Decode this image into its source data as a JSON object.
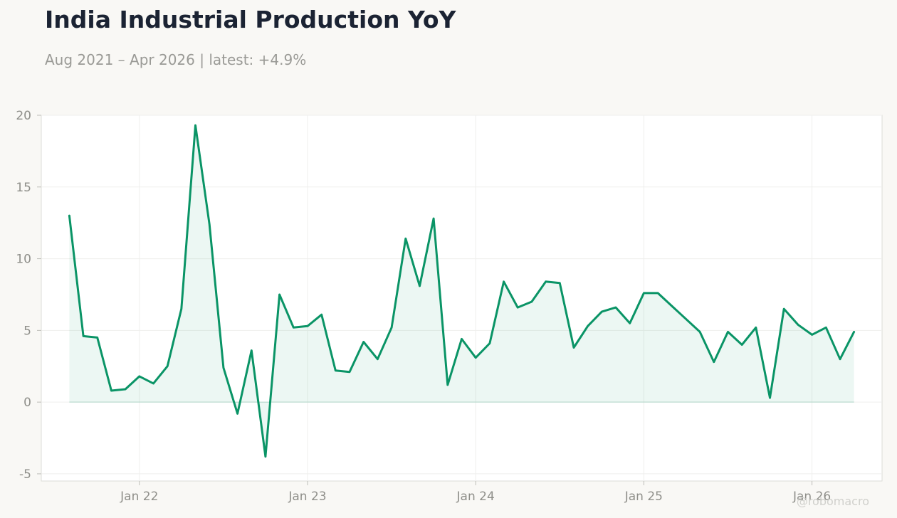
{
  "header": {
    "title": "India Industrial Production YoY",
    "subtitle": "Aug 2021 – Apr 2026 | latest: +4.9%"
  },
  "watermark": "@robomacro",
  "colors": {
    "line": "#0a9466",
    "area": "#0a9466",
    "background": "#f9f8f5",
    "plot_background": "#ffffff",
    "grid": "#efefed",
    "axis_border": "#dcdcd8",
    "text_muted": "#8f8f8a",
    "title": "#1b2333"
  },
  "chart_data": {
    "type": "area",
    "title": "India Industrial Production YoY",
    "subtitle": "Aug 2021 – Apr 2026 | latest: +4.9%",
    "xlabel": "",
    "ylabel": "",
    "ylim": [
      -5.5,
      20
    ],
    "yticks": [
      -5,
      0,
      5,
      10,
      15,
      20
    ],
    "xlim": [
      "2021-06",
      "2026-06"
    ],
    "xticks": [
      {
        "date": "2022-01",
        "label": "Jan 22"
      },
      {
        "date": "2023-01",
        "label": "Jan 23"
      },
      {
        "date": "2024-01",
        "label": "Jan 24"
      },
      {
        "date": "2025-01",
        "label": "Jan 25"
      },
      {
        "date": "2026-01",
        "label": "Jan 26"
      }
    ],
    "grid": true,
    "legend": "none",
    "series": [
      {
        "x": [
          "2021-08",
          "2021-09",
          "2021-10",
          "2021-11",
          "2021-12",
          "2022-01",
          "2022-02",
          "2022-03",
          "2022-04",
          "2022-05",
          "2022-06",
          "2022-07",
          "2022-08",
          "2022-09",
          "2022-10",
          "2022-11",
          "2022-12",
          "2023-01",
          "2023-02",
          "2023-03",
          "2023-04",
          "2023-05",
          "2023-06",
          "2023-07",
          "2023-08",
          "2023-09",
          "2023-10",
          "2023-11",
          "2023-12",
          "2024-01",
          "2024-02",
          "2024-03",
          "2024-04",
          "2024-05",
          "2024-06",
          "2024-07",
          "2024-08",
          "2024-09",
          "2024-10",
          "2024-11",
          "2024-12",
          "2025-01",
          "2025-02",
          "2025-03",
          "2025-04",
          "2025-05",
          "2025-06",
          "2025-07",
          "2025-08",
          "2025-09",
          "2025-10",
          "2025-11",
          "2025-12",
          "2026-01",
          "2026-02",
          "2026-03",
          "2026-04"
        ],
        "values": [
          13.0,
          4.6,
          4.5,
          0.8,
          0.9,
          1.8,
          1.3,
          2.5,
          6.5,
          19.3,
          12.4,
          2.4,
          -0.8,
          3.6,
          -3.8,
          7.5,
          5.2,
          5.3,
          6.1,
          2.2,
          2.1,
          4.2,
          3.0,
          5.2,
          11.4,
          8.1,
          12.8,
          1.2,
          4.4,
          3.1,
          4.1,
          8.4,
          6.6,
          7.0,
          8.4,
          8.3,
          3.8,
          5.3,
          6.3,
          6.6,
          5.5,
          7.6,
          7.6,
          6.7,
          5.8,
          4.9,
          2.8,
          4.9,
          4.0,
          5.2,
          0.3,
          6.5,
          5.4,
          4.7,
          5.2,
          3.0,
          4.9
        ]
      }
    ]
  }
}
